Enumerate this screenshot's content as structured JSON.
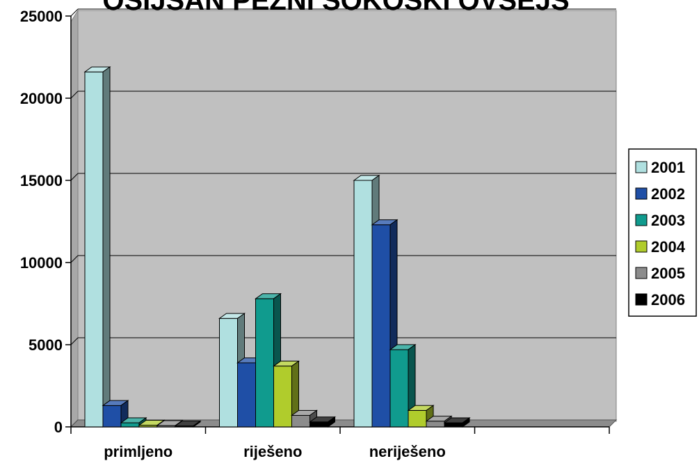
{
  "chart_data": {
    "type": "bar",
    "title": "OSIJŠAN PEŽNI ŠOKOŠKI OVSEJŠ",
    "categories": [
      "primljeno",
      "riješeno",
      "neriješeno",
      ""
    ],
    "ylim": [
      0,
      25000
    ],
    "yticks": [
      "0",
      "5000",
      "10000",
      "15000",
      "20000",
      "25000"
    ],
    "grid": true,
    "legend_position": "right",
    "series": [
      {
        "name": "2001",
        "color": "#b0e0e0",
        "values": [
          21600,
          6600,
          15000,
          0
        ]
      },
      {
        "name": "2002",
        "color": "#1f4fa6",
        "values": [
          1300,
          3900,
          12300,
          0
        ]
      },
      {
        "name": "2003",
        "color": "#109b8e",
        "values": [
          250,
          7800,
          4700,
          0
        ]
      },
      {
        "name": "2004",
        "color": "#b0cc2c",
        "values": [
          100,
          3700,
          1000,
          0
        ]
      },
      {
        "name": "2005",
        "color": "#8c8c8c",
        "values": [
          80,
          700,
          350,
          0
        ]
      },
      {
        "name": "2006",
        "color": "#000000",
        "values": [
          60,
          300,
          250,
          0
        ]
      }
    ]
  }
}
